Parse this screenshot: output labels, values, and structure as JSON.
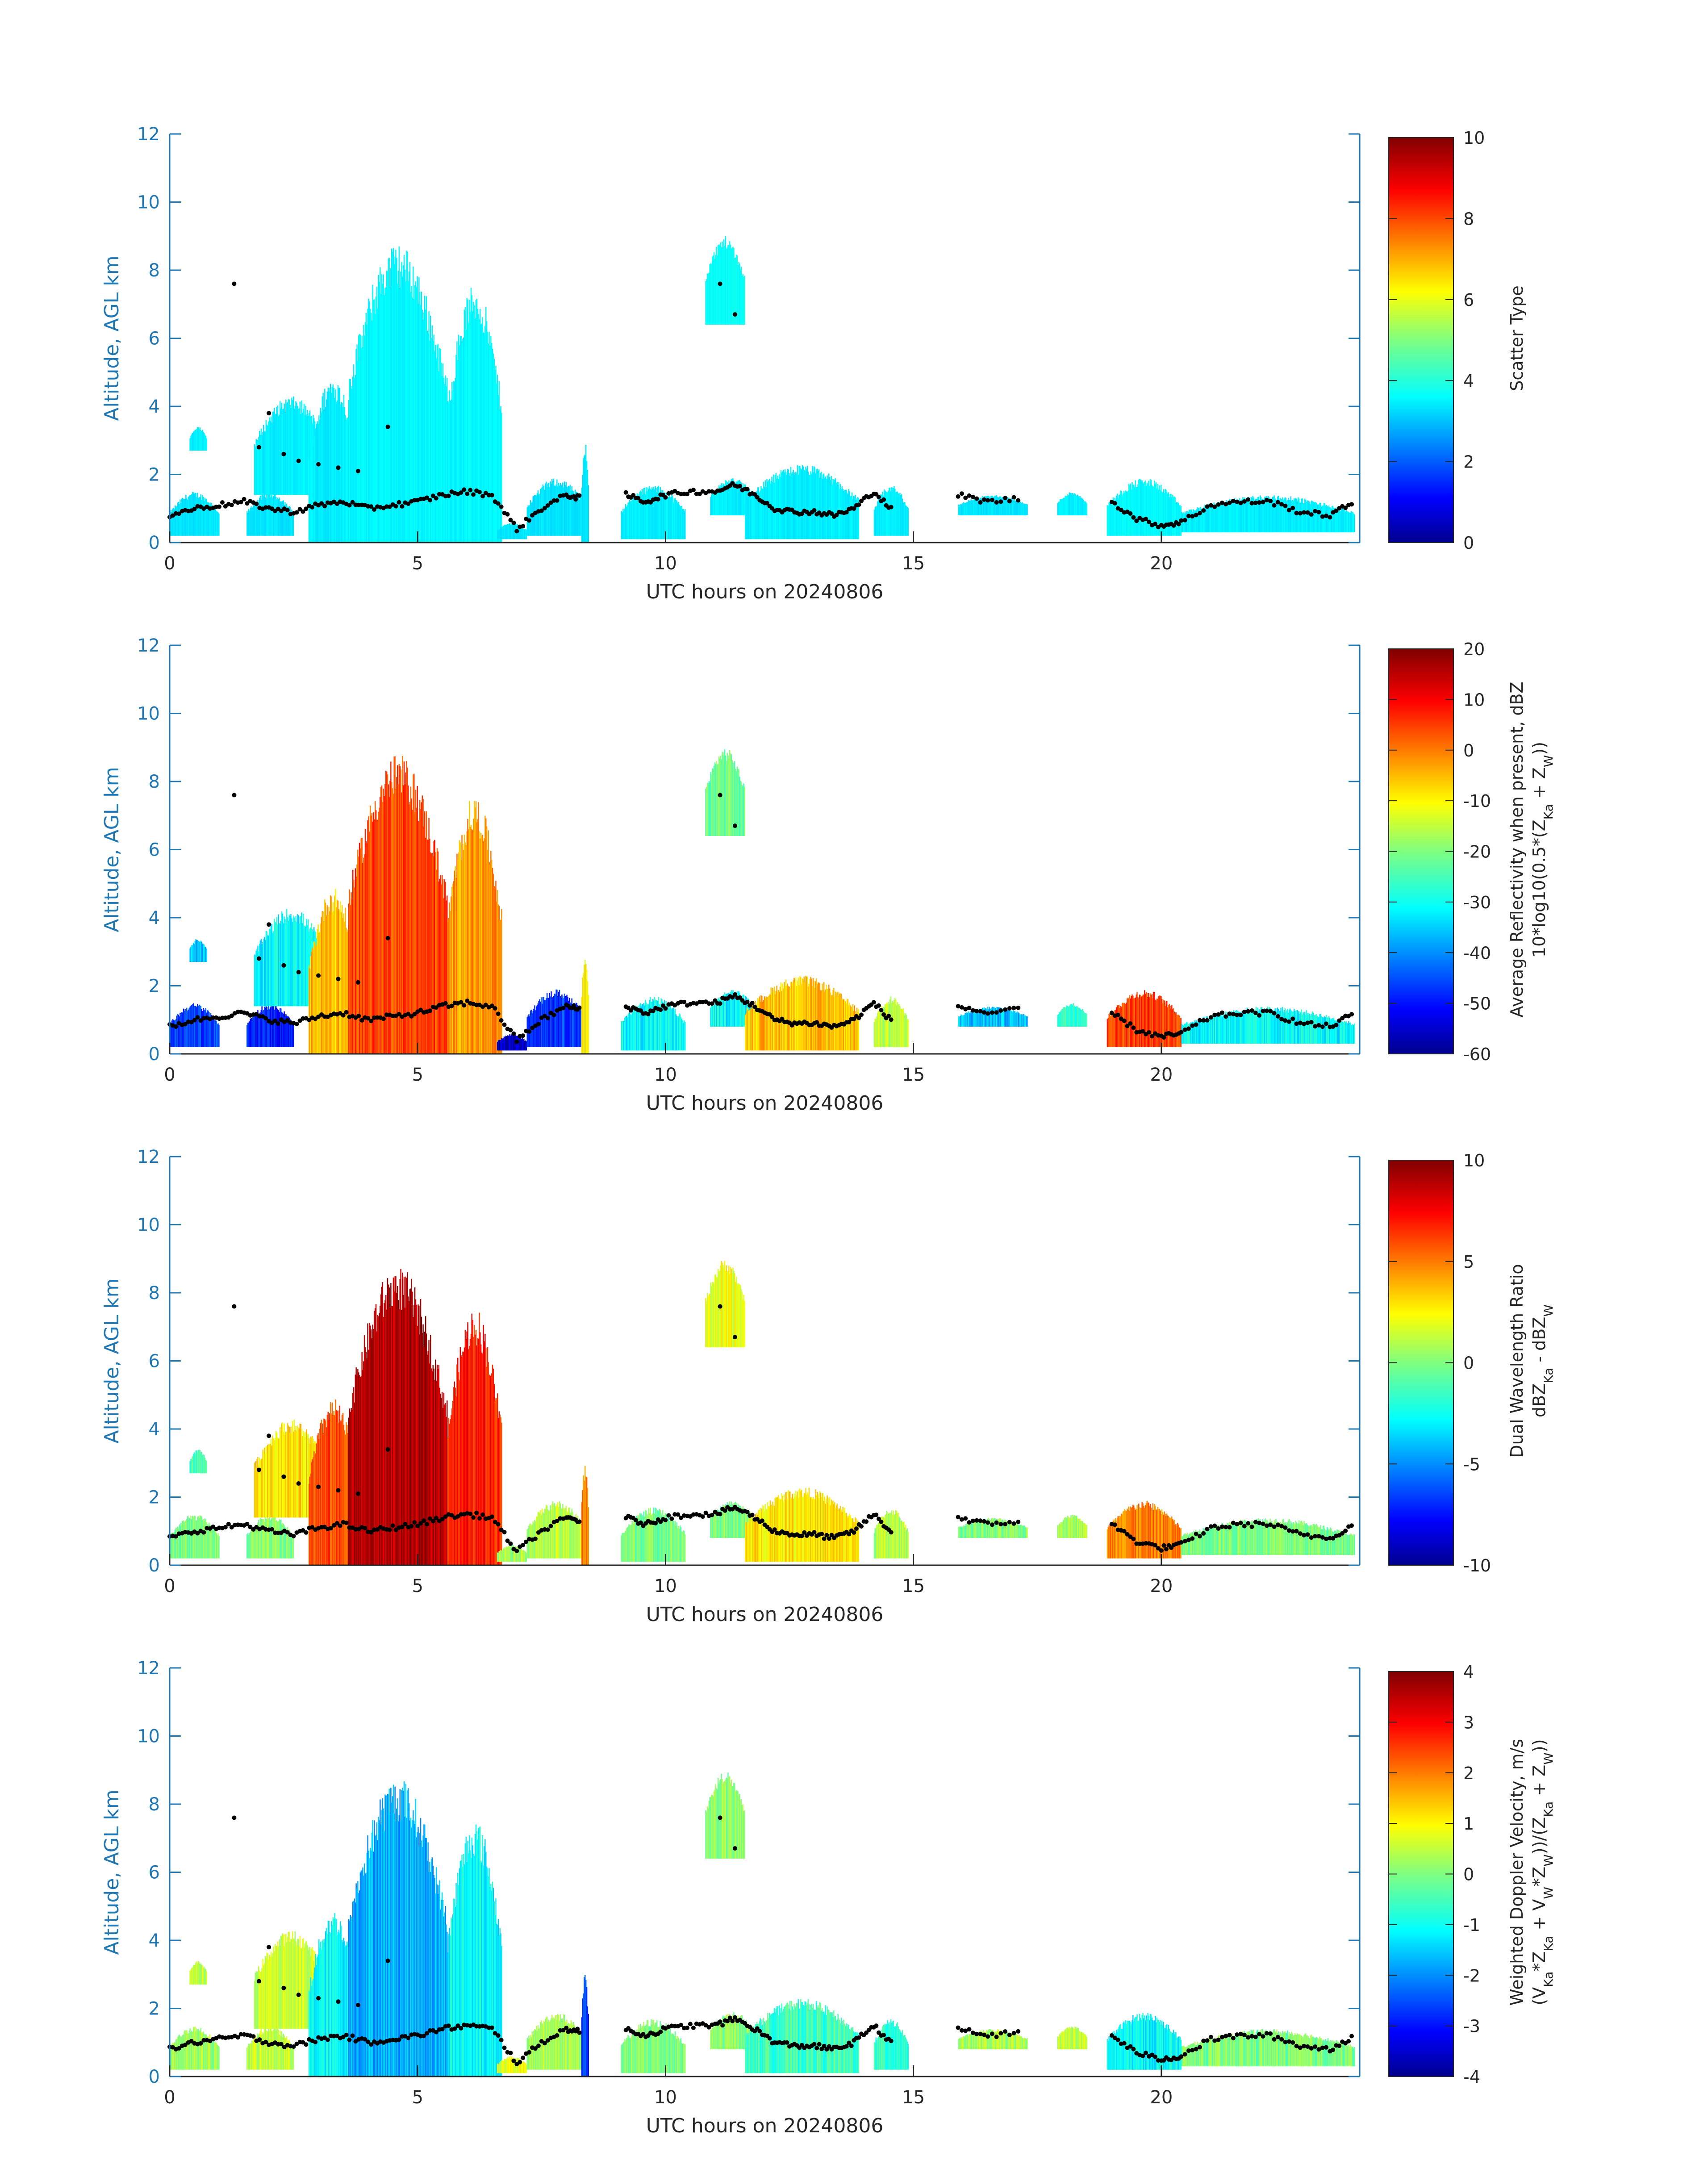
{
  "figure": {
    "date_label": "UTC hours on 20240806",
    "axis_color": "#1f77b4"
  },
  "chart_data": [
    {
      "type": "heatmap",
      "title": "",
      "xlabel": "UTC hours on 20240806",
      "ylabel": "Altitude, AGL km",
      "xlim": [
        0,
        24
      ],
      "ylim": [
        0,
        12
      ],
      "x_ticks": [
        0,
        5,
        10,
        15,
        20
      ],
      "y_ticks": [
        0,
        2,
        4,
        6,
        8,
        10,
        12
      ],
      "colormap": "jet",
      "colorbar": {
        "label_lines": [
          "Scatter Type"
        ],
        "clim": [
          0,
          10
        ],
        "ticks": [
          0,
          2,
          4,
          6,
          8,
          10
        ]
      }
    },
    {
      "type": "heatmap",
      "title": "",
      "xlabel": "UTC hours on 20240806",
      "ylabel": "Altitude, AGL km",
      "xlim": [
        0,
        24
      ],
      "ylim": [
        0,
        12
      ],
      "x_ticks": [
        0,
        5,
        10,
        15,
        20
      ],
      "y_ticks": [
        0,
        2,
        4,
        6,
        8,
        10,
        12
      ],
      "colormap": "jet",
      "colorbar": {
        "label_lines": [
          "Average Reflectivity when present, dBZ",
          "10*log10(0.5*(Z_Ka + Z_W))"
        ],
        "clim": [
          -60,
          20
        ],
        "ticks": [
          -60,
          -50,
          -40,
          -30,
          -20,
          -10,
          0,
          10,
          20
        ]
      }
    },
    {
      "type": "heatmap",
      "title": "",
      "xlabel": "UTC hours on 20240806",
      "ylabel": "Altitude, AGL km",
      "xlim": [
        0,
        24
      ],
      "ylim": [
        0,
        12
      ],
      "x_ticks": [
        0,
        5,
        10,
        15,
        20
      ],
      "y_ticks": [
        0,
        2,
        4,
        6,
        8,
        10,
        12
      ],
      "colormap": "jet",
      "colorbar": {
        "label_lines": [
          "Dual Wavelength Ratio",
          "dBZ_Ka - dBZ_W"
        ],
        "clim": [
          -10,
          10
        ],
        "ticks": [
          -10,
          -5,
          0,
          5,
          10
        ]
      }
    },
    {
      "type": "heatmap",
      "title": "",
      "xlabel": "UTC hours on 20240806",
      "ylabel": "Altitude, AGL km",
      "xlim": [
        0,
        24
      ],
      "ylim": [
        0,
        12
      ],
      "x_ticks": [
        0,
        5,
        10,
        15,
        20
      ],
      "y_ticks": [
        0,
        2,
        4,
        6,
        8,
        10,
        12
      ],
      "colormap": "jet",
      "colorbar": {
        "label_lines": [
          "Weighted Doppler Velocity, m/s",
          "(V_Ka*Z_Ka + V_W*Z_W))/(Z_Ka + Z_W))"
        ],
        "clim": [
          -4,
          4
        ],
        "ticks": [
          -4,
          -3,
          -2,
          -1,
          0,
          1,
          2,
          3,
          4
        ]
      }
    }
  ],
  "cloud_field": {
    "regions": [
      {
        "t0": 0.0,
        "t1": 1.0,
        "base": 0.2,
        "top": 1.5,
        "value": [
          3.5,
          -45,
          0,
          0.3
        ]
      },
      {
        "t0": 0.4,
        "t1": 0.75,
        "base": 2.7,
        "top": 3.4,
        "value": [
          3.6,
          -35,
          -1,
          0.5
        ]
      },
      {
        "t0": 1.55,
        "t1": 2.5,
        "base": 0.2,
        "top": 1.5,
        "value": [
          3.5,
          -48,
          0,
          0.5
        ]
      },
      {
        "t0": 1.7,
        "t1": 3.2,
        "base": 1.4,
        "top": 4.3,
        "value": [
          3.6,
          -30,
          3,
          0.6
        ]
      },
      {
        "t0": 2.8,
        "t1": 3.8,
        "base": 0.0,
        "top": 4.9,
        "value": [
          3.6,
          -5,
          6,
          -1.0
        ]
      },
      {
        "t0": 3.6,
        "t1": 5.6,
        "base": 0.0,
        "top": 8.8,
        "value": [
          3.7,
          5,
          9,
          -1.6
        ]
      },
      {
        "t0": 5.6,
        "t1": 6.7,
        "base": 0.0,
        "top": 7.6,
        "value": [
          3.7,
          -2,
          7,
          -1.0
        ]
      },
      {
        "t0": 6.6,
        "t1": 7.2,
        "base": 0.1,
        "top": 0.6,
        "value": [
          3.5,
          -55,
          1,
          0.8
        ]
      },
      {
        "t0": 7.2,
        "t1": 8.4,
        "base": 0.2,
        "top": 1.9,
        "value": [
          3.5,
          -45,
          1,
          0.3
        ]
      },
      {
        "t0": 8.3,
        "t1": 8.45,
        "base": 0.0,
        "top": 3.0,
        "value": [
          3.5,
          -10,
          5,
          -2.5
        ]
      },
      {
        "t0": 9.1,
        "t1": 10.4,
        "base": 0.1,
        "top": 1.7,
        "value": [
          3.6,
          -30,
          0,
          0.0
        ]
      },
      {
        "t0": 10.8,
        "t1": 11.6,
        "base": 6.4,
        "top": 9.0,
        "value": [
          3.8,
          -22,
          2,
          0.1
        ]
      },
      {
        "t0": 10.9,
        "t1": 11.8,
        "base": 0.8,
        "top": 1.9,
        "value": [
          3.6,
          -30,
          0,
          0.1
        ]
      },
      {
        "t0": 11.6,
        "t1": 13.9,
        "base": 0.1,
        "top": 2.3,
        "value": [
          3.6,
          -5,
          3,
          -0.5
        ]
      },
      {
        "t0": 14.2,
        "t1": 14.9,
        "base": 0.2,
        "top": 1.7,
        "value": [
          3.6,
          -15,
          1,
          -0.6
        ]
      },
      {
        "t0": 15.9,
        "t1": 17.3,
        "base": 0.8,
        "top": 1.4,
        "value": [
          3.5,
          -35,
          0,
          0.3
        ]
      },
      {
        "t0": 17.9,
        "t1": 18.5,
        "base": 0.8,
        "top": 1.5,
        "value": [
          3.6,
          -25,
          1,
          0.5
        ]
      },
      {
        "t0": 18.9,
        "t1": 20.4,
        "base": 0.2,
        "top": 1.9,
        "value": [
          3.7,
          5,
          5,
          -1.0
        ]
      },
      {
        "t0": 20.4,
        "t1": 23.9,
        "base": 0.3,
        "top": 1.4,
        "value": [
          3.6,
          -30,
          0,
          0.0
        ]
      }
    ],
    "base_track": [
      [
        0.0,
        0.8
      ],
      [
        0.5,
        1.0
      ],
      [
        1.0,
        1.1
      ],
      [
        1.5,
        1.2
      ],
      [
        2.0,
        1.0
      ],
      [
        2.5,
        0.9
      ],
      [
        3.0,
        1.1
      ],
      [
        3.5,
        1.2
      ],
      [
        4.0,
        1.0
      ],
      [
        4.5,
        1.1
      ],
      [
        5.0,
        1.2
      ],
      [
        5.5,
        1.4
      ],
      [
        6.0,
        1.5
      ],
      [
        6.5,
        1.4
      ],
      [
        7.0,
        0.4
      ],
      [
        7.5,
        1.0
      ],
      [
        8.0,
        1.4
      ],
      [
        8.3,
        1.3
      ],
      [
        9.2,
        1.4
      ],
      [
        9.6,
        1.2
      ],
      [
        10.0,
        1.4
      ],
      [
        10.5,
        1.5
      ],
      [
        11.0,
        1.5
      ],
      [
        11.4,
        1.7
      ],
      [
        11.8,
        1.4
      ],
      [
        12.2,
        1.0
      ],
      [
        12.6,
        0.9
      ],
      [
        13.0,
        0.9
      ],
      [
        13.4,
        0.8
      ],
      [
        13.8,
        1.0
      ],
      [
        14.2,
        1.5
      ],
      [
        14.6,
        0.9
      ],
      [
        15.9,
        1.4
      ],
      [
        16.5,
        1.2
      ],
      [
        17.2,
        1.3
      ],
      [
        18.2,
        1.3
      ],
      [
        19.0,
        1.2
      ],
      [
        19.5,
        0.7
      ],
      [
        20.0,
        0.5
      ],
      [
        20.4,
        0.6
      ],
      [
        21.0,
        1.1
      ],
      [
        21.6,
        1.2
      ],
      [
        22.2,
        1.2
      ],
      [
        22.8,
        0.9
      ],
      [
        23.4,
        0.8
      ],
      [
        23.9,
        1.2
      ]
    ],
    "upper_track": [
      [
        1.3,
        7.6
      ],
      [
        1.8,
        2.8
      ],
      [
        2.0,
        3.8
      ],
      [
        2.3,
        2.6
      ],
      [
        2.6,
        2.4
      ],
      [
        3.0,
        2.3
      ],
      [
        3.4,
        2.2
      ],
      [
        3.8,
        2.1
      ],
      [
        4.4,
        3.4
      ],
      [
        11.1,
        7.6
      ],
      [
        11.4,
        6.7
      ]
    ]
  }
}
